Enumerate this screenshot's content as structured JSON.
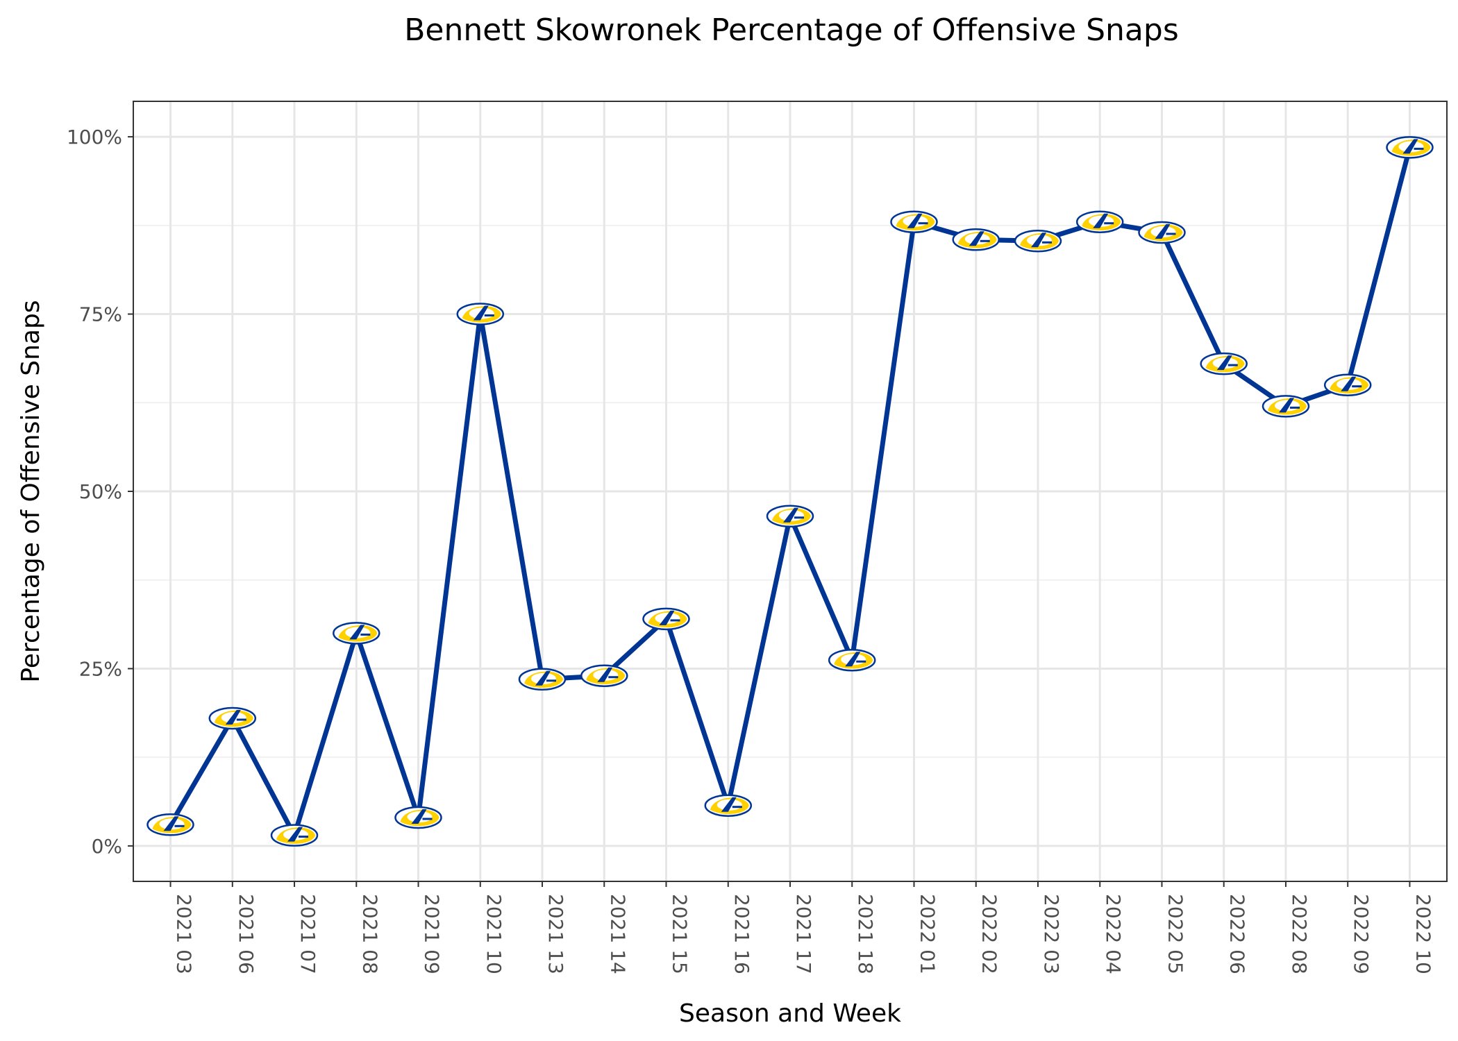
{
  "chart_data": {
    "type": "line",
    "title": "Bennett Skowronek Percentage of Offensive Snaps",
    "xlabel": "Season and Week",
    "ylabel": "Percentage of Offensive Snaps",
    "categories": [
      "2021 03",
      "2021 06",
      "2021 07",
      "2021 08",
      "2021 09",
      "2021 10",
      "2021 13",
      "2021 14",
      "2021 15",
      "2021 16",
      "2021 17",
      "2021 18",
      "2022 01",
      "2022 02",
      "2022 03",
      "2022 04",
      "2022 05",
      "2022 06",
      "2022 08",
      "2022 09",
      "2022 10"
    ],
    "values": [
      0.03,
      0.18,
      0.015,
      0.3,
      0.04,
      0.75,
      0.235,
      0.24,
      0.32,
      0.057,
      0.465,
      0.262,
      0.88,
      0.855,
      0.853,
      0.88,
      0.865,
      0.68,
      0.62,
      0.65,
      0.985
    ],
    "ylim": [
      -0.05,
      1.05
    ],
    "y_ticks": [
      0,
      0.25,
      0.5,
      0.75,
      1.0
    ],
    "y_tick_labels": [
      "0%",
      "25%",
      "50%",
      "75%",
      "100%"
    ],
    "grid": true,
    "colors": {
      "line": "#003594",
      "marker_primary": "#003594",
      "marker_accent": "#FFD100"
    },
    "marker_icon": "la-rams-logo-icon"
  }
}
